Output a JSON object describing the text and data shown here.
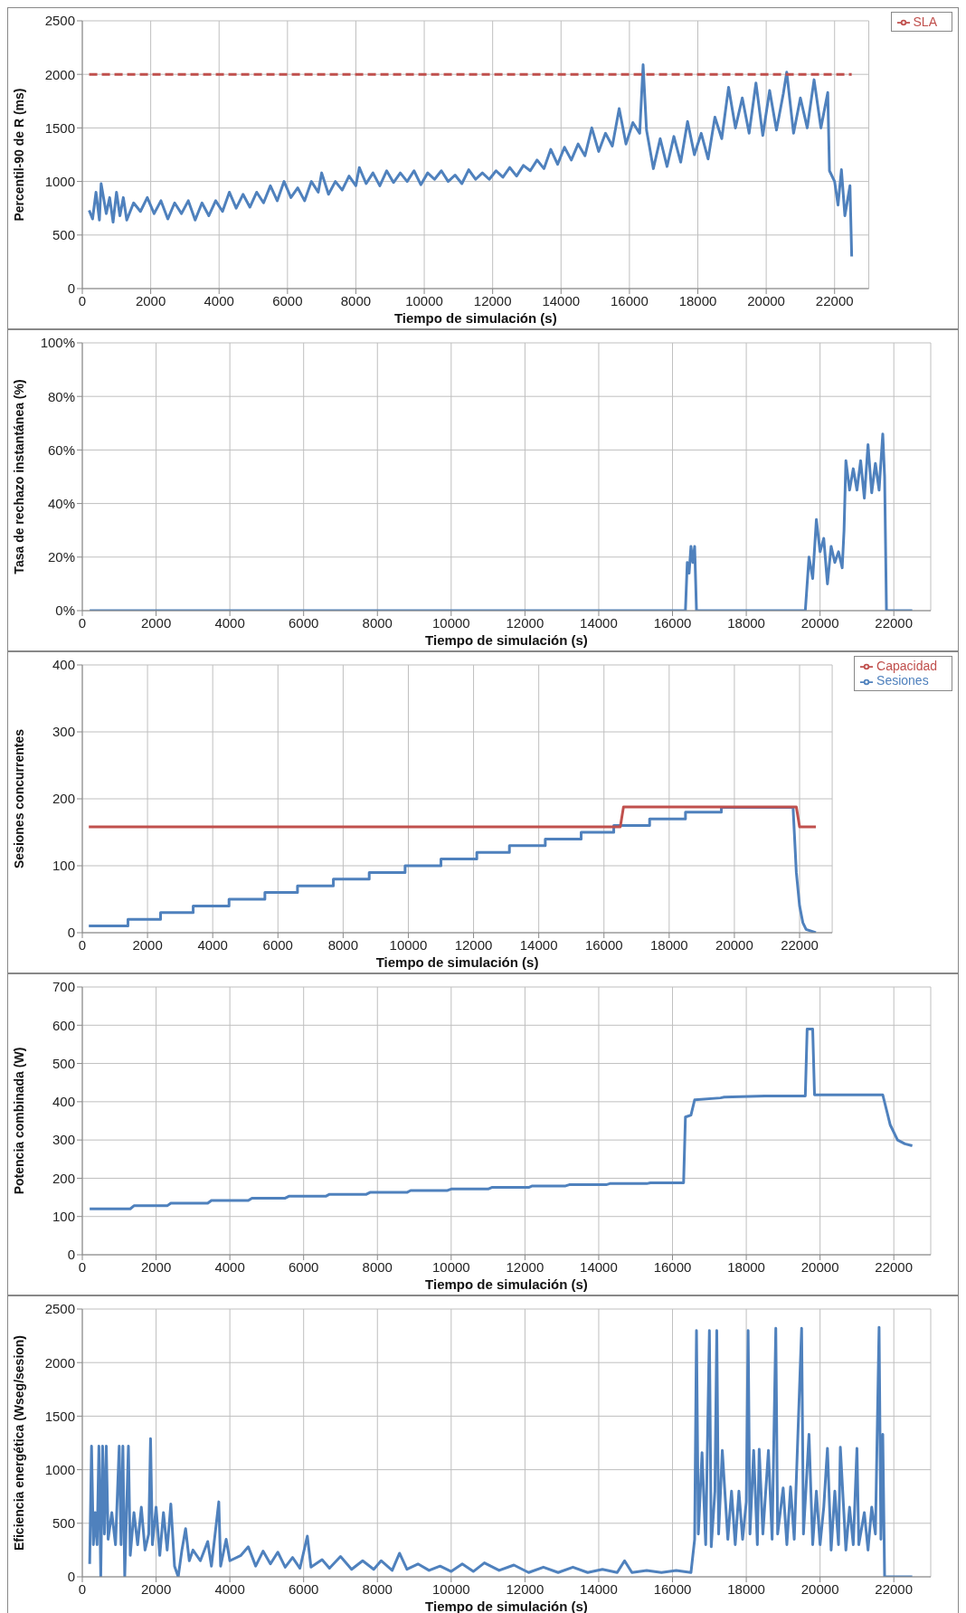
{
  "chart_data": [
    {
      "type": "line",
      "xlabel": "Tiempo de simulación (s)",
      "ylabel": "Percentil-90 de R (ms)",
      "xlim": [
        0,
        23000
      ],
      "xticks": [
        0,
        2000,
        4000,
        6000,
        8000,
        10000,
        12000,
        14000,
        16000,
        18000,
        20000,
        22000
      ],
      "ylim": [
        0,
        2500
      ],
      "yticks": [
        0,
        500,
        1000,
        1500,
        2000,
        2500
      ],
      "grid": true,
      "legend": "top right",
      "marker": "none",
      "series": [
        {
          "color": "#4f81bd",
          "line_style": "solid",
          "x": [
            200,
            300,
            400,
            500,
            550,
            700,
            800,
            900,
            1000,
            1100,
            1200,
            1300,
            1500,
            1700,
            1900,
            2100,
            2300,
            2500,
            2700,
            2900,
            3100,
            3300,
            3500,
            3700,
            3900,
            4100,
            4300,
            4500,
            4700,
            4900,
            5100,
            5300,
            5500,
            5700,
            5900,
            6100,
            6300,
            6500,
            6700,
            6900,
            7000,
            7200,
            7400,
            7600,
            7800,
            8000,
            8100,
            8300,
            8500,
            8700,
            8900,
            9100,
            9300,
            9500,
            9700,
            9900,
            10100,
            10300,
            10500,
            10700,
            10900,
            11100,
            11300,
            11500,
            11700,
            11900,
            12100,
            12300,
            12500,
            12700,
            12900,
            13100,
            13300,
            13500,
            13700,
            13900,
            14100,
            14300,
            14500,
            14700,
            14900,
            15100,
            15300,
            15500,
            15700,
            15900,
            16100,
            16300,
            16400,
            16500,
            16600,
            16700,
            16900,
            17100,
            17300,
            17500,
            17700,
            17900,
            18100,
            18300,
            18500,
            18700,
            18900,
            19100,
            19300,
            19500,
            19700,
            19900,
            20100,
            20300,
            20500,
            20600,
            20800,
            21000,
            21200,
            21400,
            21600,
            21800,
            21850,
            22000,
            22100,
            22200,
            22300,
            22450,
            22500
          ],
          "values": [
            730,
            650,
            900,
            640,
            980,
            700,
            850,
            620,
            900,
            680,
            850,
            640,
            800,
            720,
            850,
            700,
            820,
            650,
            800,
            700,
            820,
            640,
            800,
            680,
            820,
            720,
            900,
            750,
            880,
            760,
            900,
            800,
            960,
            820,
            1000,
            850,
            940,
            820,
            1000,
            900,
            1080,
            880,
            1000,
            920,
            1050,
            960,
            1130,
            980,
            1080,
            960,
            1100,
            990,
            1080,
            1000,
            1100,
            970,
            1080,
            1020,
            1100,
            1000,
            1060,
            980,
            1110,
            1020,
            1080,
            1020,
            1100,
            1040,
            1130,
            1050,
            1150,
            1100,
            1200,
            1120,
            1300,
            1160,
            1320,
            1200,
            1350,
            1240,
            1500,
            1280,
            1450,
            1330,
            1680,
            1350,
            1550,
            1450,
            2090,
            1480,
            1300,
            1120,
            1400,
            1140,
            1420,
            1180,
            1560,
            1250,
            1450,
            1210,
            1600,
            1400,
            1880,
            1500,
            1780,
            1450,
            1920,
            1430,
            1850,
            1480,
            1820,
            2020,
            1450,
            1780,
            1500,
            1950,
            1500,
            1830,
            1100,
            1000,
            780,
            1110,
            680,
            960,
            300
          ]
        },
        {
          "name": "SLA",
          "color": "#c0504d",
          "line_style": "dashed",
          "x": [
            200,
            22500
          ],
          "values": [
            2000,
            2000
          ]
        }
      ]
    },
    {
      "type": "line",
      "xlabel": "Tiempo de simulación (s)",
      "ylabel": "Tasa de rechazo instantánea (%)",
      "xlim": [
        0,
        23000
      ],
      "xticks": [
        0,
        2000,
        4000,
        6000,
        8000,
        10000,
        12000,
        14000,
        16000,
        18000,
        20000,
        22000
      ],
      "ylim": [
        0,
        100
      ],
      "yticks": [
        {
          "value": 0,
          "label": "0%"
        },
        {
          "value": 20,
          "label": "20%"
        },
        {
          "value": 40,
          "label": "40%"
        },
        {
          "value": 60,
          "label": "60%"
        },
        {
          "value": 80,
          "label": "80%"
        },
        {
          "value": 100,
          "label": "100%"
        }
      ],
      "grid": true,
      "marker": "none",
      "series": [
        {
          "color": "#4f81bd",
          "line_style": "solid",
          "x": [
            200,
            16350,
            16400,
            16450,
            16500,
            16550,
            16600,
            16650,
            19600,
            19700,
            19800,
            19900,
            20000,
            20100,
            20200,
            20300,
            20400,
            20500,
            20600,
            20650,
            20700,
            20800,
            20900,
            21000,
            21100,
            21200,
            21300,
            21400,
            21500,
            21600,
            21700,
            21750,
            21800,
            22500
          ],
          "values": [
            0,
            0,
            18,
            14,
            24,
            18,
            24,
            0,
            0,
            20,
            12,
            34,
            22,
            27,
            10,
            24,
            18,
            22,
            16,
            30,
            56,
            45,
            53,
            45,
            56,
            42,
            62,
            44,
            55,
            45,
            66,
            50,
            0,
            0
          ]
        }
      ]
    },
    {
      "type": "line",
      "xlabel": "Tiempo de simulación (s)",
      "ylabel": "Sesiones concurrentes",
      "xlim": [
        0,
        23000
      ],
      "xticks": [
        0,
        2000,
        4000,
        6000,
        8000,
        10000,
        12000,
        14000,
        16000,
        18000,
        20000,
        22000
      ],
      "ylim": [
        0,
        400
      ],
      "yticks": [
        0,
        100,
        200,
        300,
        400
      ],
      "grid": true,
      "legend": "top right",
      "marker": "none",
      "series": [
        {
          "name": "Sesiones",
          "color": "#4f81bd",
          "line_style": "solid",
          "x": [
            200,
            1400,
            1400,
            2400,
            2400,
            3400,
            3400,
            4500,
            4500,
            5600,
            5600,
            6600,
            6600,
            7700,
            7700,
            8800,
            8800,
            9900,
            9900,
            11000,
            11000,
            12100,
            12100,
            13100,
            13100,
            14200,
            14200,
            15300,
            15300,
            16300,
            16300,
            17400,
            17400,
            18500,
            18500,
            19600,
            19600,
            21800,
            21900,
            22000,
            22100,
            22200,
            22500
          ],
          "values": [
            10,
            10,
            20,
            20,
            30,
            30,
            40,
            40,
            50,
            50,
            60,
            60,
            70,
            70,
            80,
            80,
            90,
            90,
            100,
            100,
            110,
            110,
            120,
            120,
            130,
            130,
            140,
            140,
            150,
            150,
            160,
            160,
            170,
            170,
            180,
            180,
            187,
            187,
            90,
            40,
            15,
            5,
            0
          ]
        },
        {
          "name": "Capacidad",
          "color": "#c0504d",
          "line_style": "solid",
          "x": [
            200,
            16500,
            16600,
            21900,
            22000,
            22500
          ],
          "values": [
            158,
            158,
            188,
            188,
            158,
            158
          ]
        }
      ]
    },
    {
      "type": "line",
      "xlabel": "Tiempo de simulación (s)",
      "ylabel": "Potencia combinada (W)",
      "xlim": [
        0,
        23000
      ],
      "xticks": [
        0,
        2000,
        4000,
        6000,
        8000,
        10000,
        12000,
        14000,
        16000,
        18000,
        20000,
        22000
      ],
      "ylim": [
        0,
        700
      ],
      "yticks": [
        0,
        100,
        200,
        300,
        400,
        500,
        600,
        700
      ],
      "grid": true,
      "marker": "none",
      "series": [
        {
          "color": "#4f81bd",
          "line_style": "solid",
          "x": [
            200,
            1300,
            1400,
            2300,
            2400,
            3400,
            3500,
            4500,
            4600,
            5500,
            5600,
            6600,
            6700,
            7700,
            7800,
            8800,
            8900,
            9900,
            10000,
            11000,
            11100,
            12100,
            12200,
            13100,
            13200,
            14200,
            14300,
            15300,
            15400,
            16300,
            16350,
            16500,
            16600,
            17300,
            17400,
            18500,
            19600,
            19650,
            19800,
            19850,
            21700,
            21900,
            22100,
            22300,
            22500
          ],
          "values": [
            120,
            120,
            128,
            128,
            135,
            135,
            142,
            142,
            148,
            148,
            153,
            153,
            158,
            158,
            163,
            163,
            168,
            168,
            172,
            172,
            176,
            176,
            180,
            180,
            183,
            183,
            186,
            186,
            188,
            188,
            360,
            365,
            405,
            410,
            412,
            415,
            415,
            590,
            590,
            418,
            418,
            340,
            300,
            290,
            285
          ]
        }
      ]
    },
    {
      "type": "line",
      "xlabel": "Tiempo de simulación (s)",
      "ylabel": "Eficiencia energética (Wseg/sesion)",
      "xlim": [
        0,
        23000
      ],
      "xticks": [
        0,
        2000,
        4000,
        6000,
        8000,
        10000,
        12000,
        14000,
        16000,
        18000,
        20000,
        22000
      ],
      "ylim": [
        0,
        2500
      ],
      "yticks": [
        0,
        500,
        1000,
        1500,
        2000,
        2500
      ],
      "grid": true,
      "marker": "none",
      "series": [
        {
          "color": "#4f81bd",
          "line_style": "solid",
          "x": [
            200,
            250,
            300,
            350,
            400,
            450,
            500,
            550,
            600,
            650,
            700,
            800,
            900,
            1000,
            1050,
            1100,
            1150,
            1250,
            1300,
            1400,
            1500,
            1600,
            1700,
            1800,
            1850,
            1900,
            2000,
            2100,
            2200,
            2300,
            2400,
            2500,
            2600,
            2700,
            2800,
            2900,
            3000,
            3200,
            3400,
            3500,
            3700,
            3750,
            3900,
            4000,
            4300,
            4500,
            4700,
            4900,
            5100,
            5300,
            5500,
            5700,
            5900,
            6100,
            6200,
            6500,
            6700,
            7000,
            7300,
            7600,
            7900,
            8100,
            8400,
            8600,
            8800,
            9100,
            9400,
            9700,
            10000,
            10300,
            10600,
            10900,
            11300,
            11700,
            12100,
            12500,
            12900,
            13300,
            13700,
            14100,
            14500,
            14700,
            14900,
            15300,
            15700,
            16100,
            16500,
            16600,
            16650,
            16700,
            16800,
            16900,
            17000,
            17050,
            17150,
            17200,
            17250,
            17350,
            17500,
            17600,
            17700,
            17800,
            17900,
            18000,
            18050,
            18100,
            18200,
            18300,
            18350,
            18450,
            18600,
            18700,
            18800,
            18850,
            19000,
            19100,
            19200,
            19300,
            19500,
            19550,
            19700,
            19800,
            19900,
            20000,
            20100,
            20200,
            20300,
            20400,
            20500,
            20550,
            20700,
            20800,
            20900,
            21000,
            21050,
            21200,
            21300,
            21400,
            21500,
            21600,
            21650,
            21700,
            21750,
            22500
          ],
          "values": [
            120,
            1220,
            300,
            600,
            300,
            1220,
            0,
            1220,
            400,
            1220,
            350,
            600,
            300,
            1220,
            300,
            1220,
            0,
            1220,
            200,
            600,
            300,
            650,
            250,
            400,
            1290,
            300,
            650,
            200,
            600,
            250,
            680,
            100,
            0,
            250,
            450,
            150,
            250,
            150,
            330,
            100,
            700,
            100,
            350,
            150,
            200,
            280,
            100,
            240,
            120,
            230,
            90,
            180,
            80,
            380,
            90,
            160,
            80,
            190,
            70,
            150,
            70,
            150,
            60,
            220,
            70,
            120,
            60,
            100,
            50,
            120,
            50,
            130,
            60,
            110,
            40,
            90,
            40,
            90,
            40,
            70,
            40,
            150,
            40,
            60,
            40,
            60,
            40,
            350,
            2300,
            400,
            1160,
            300,
            2300,
            280,
            800,
            2300,
            400,
            1180,
            350,
            800,
            300,
            800,
            350,
            700,
            2300,
            400,
            1180,
            300,
            1190,
            400,
            1180,
            350,
            2320,
            400,
            830,
            300,
            840,
            350,
            2320,
            400,
            1330,
            300,
            800,
            300,
            650,
            1200,
            250,
            800,
            300,
            1210,
            250,
            650,
            300,
            1200,
            300,
            600,
            250,
            650,
            400,
            2330,
            350,
            1330,
            0,
            0
          ]
        }
      ]
    }
  ]
}
